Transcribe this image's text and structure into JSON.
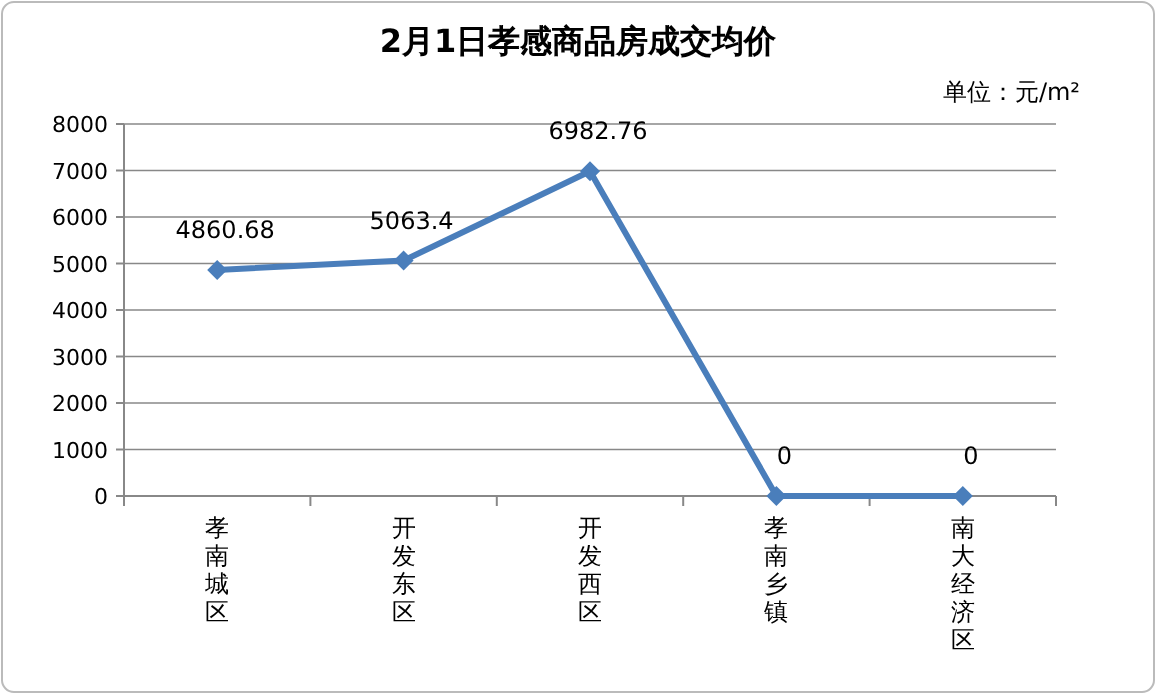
{
  "chart_data": {
    "type": "line",
    "title": "2月1日孝感商品房成交均价",
    "annotations": [
      "单位：元/m²"
    ],
    "categories": [
      "孝南城区",
      "开发东区",
      "开发西区",
      "孝南乡镇",
      "南大经济区"
    ],
    "series": [
      {
        "color": "#4a7ebb",
        "values": [
          4860.68,
          5063.4,
          6982.76,
          0,
          0
        ]
      }
    ],
    "ylim": [
      0,
      8000
    ],
    "yticks": [
      0,
      1000,
      2000,
      3000,
      4000,
      5000,
      6000,
      7000,
      8000
    ],
    "grid": "y",
    "marker": "diamond",
    "data_labels": true
  }
}
